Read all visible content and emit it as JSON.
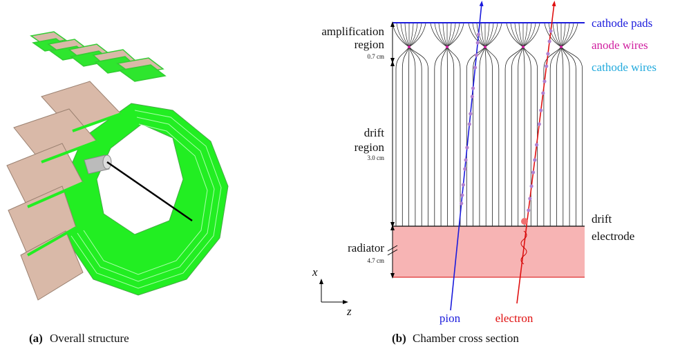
{
  "panel_a": {
    "label": "(a)",
    "caption": "Overall structure"
  },
  "panel_b": {
    "label": "(b)",
    "caption": "Chamber cross section",
    "regions": [
      {
        "lines": [
          "amplification",
          "region"
        ],
        "size": "0.7 cm"
      },
      {
        "lines": [
          "drift",
          "region"
        ],
        "size": "3.0 cm"
      },
      {
        "lines": [
          "radiator"
        ],
        "size": "4.7 cm"
      }
    ],
    "labels": {
      "cathode_pads": "cathode pads",
      "anode_wires": "anode wires",
      "cathode_wires": "cathode wires",
      "drift_electrode": [
        "drift",
        "electrode"
      ],
      "pion": "pion",
      "electron": "electron",
      "axis_x": "x",
      "axis_z": "z"
    }
  }
}
